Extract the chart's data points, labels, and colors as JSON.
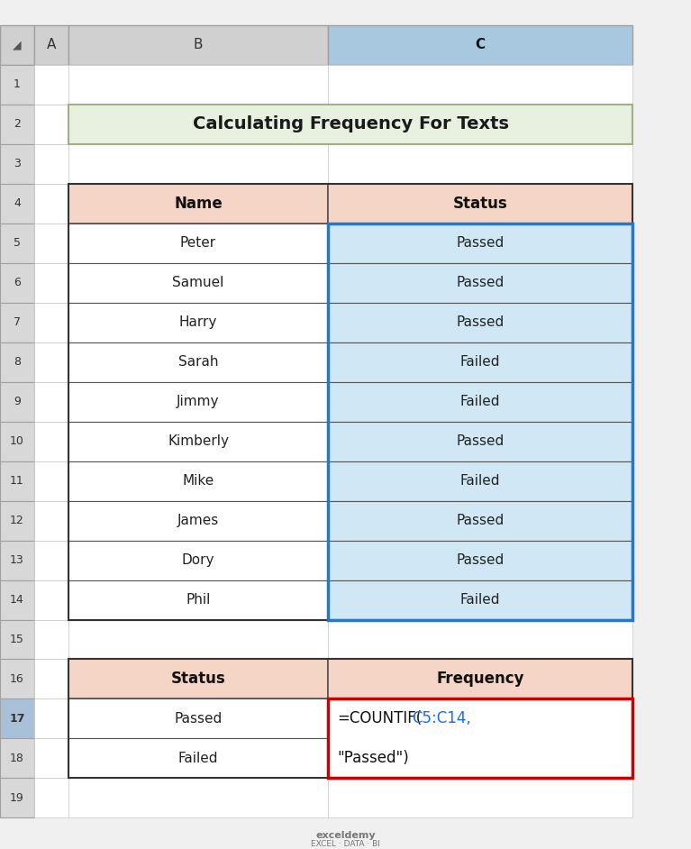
{
  "title": "Calculating Frequency For Texts",
  "title_bg": "#e8f0e0",
  "title_border": "#a0b080",
  "col_header_bg": "#f5d5c5",
  "col_c_highlight_bg": "#d0e8f5",
  "formula_border": "#cc0000",
  "header_row": [
    "Name",
    "Status"
  ],
  "data_rows": [
    [
      "Peter",
      "Passed"
    ],
    [
      "Samuel",
      "Passed"
    ],
    [
      "Harry",
      "Passed"
    ],
    [
      "Sarah",
      "Failed"
    ],
    [
      "Jimmy",
      "Failed"
    ],
    [
      "Kimberly",
      "Passed"
    ],
    [
      "Mike",
      "Failed"
    ],
    [
      "James",
      "Passed"
    ],
    [
      "Dory",
      "Passed"
    ],
    [
      "Phil",
      "Failed"
    ]
  ],
  "summary_header": [
    "Status",
    "Frequency"
  ],
  "summary_rows": [
    [
      "Passed",
      ""
    ],
    [
      "Failed",
      ""
    ]
  ],
  "excel_row_labels": [
    "1",
    "2",
    "3",
    "4",
    "5",
    "6",
    "7",
    "8",
    "9",
    "10",
    "11",
    "12",
    "13",
    "14",
    "15",
    "16",
    "17",
    "18",
    "19"
  ],
  "col_labels": [
    "A",
    "B",
    "C"
  ],
  "bg_color": "#f0f0f0",
  "grid_color": "#c0c0c0",
  "border_color": "#555555",
  "text_color": "#222222",
  "blue_text": "#1a6aff",
  "header_row_bg": "#e0e0e0",
  "row_label_bg": "#e8e8e8",
  "watermark_line1": "exceldemy",
  "watermark_line2": "EXCEL · DATA · BI"
}
